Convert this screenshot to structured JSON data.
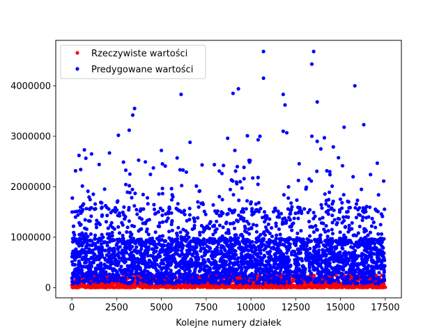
{
  "chart_data": {
    "type": "scatter",
    "title": "",
    "xlabel": "Kolejne numery działek",
    "ylabel": "",
    "xlim": [
      -900,
      18400
    ],
    "ylim": [
      -200000,
      4900000
    ],
    "x_ticks": [
      0,
      2500,
      5000,
      7500,
      10000,
      12500,
      15000,
      17500
    ],
    "x_tick_labels": [
      "0",
      "2500",
      "5000",
      "7500",
      "10000",
      "12500",
      "15000",
      "17500"
    ],
    "y_ticks": [
      0,
      1000000,
      2000000,
      3000000,
      4000000
    ],
    "y_tick_labels": [
      "0",
      "1000000",
      "2000000",
      "3000000",
      "4000000"
    ],
    "grid": false,
    "legend_position": "top-left",
    "series": [
      {
        "name": "Rzeczywiste wartości",
        "color": "#ff0000",
        "description": "dense band of red points spanning x 0–17500 with y mostly between 0 and ~250000",
        "sample_points": [
          [
            300,
            40000
          ],
          [
            1500,
            80000
          ],
          [
            2800,
            20000
          ],
          [
            4100,
            110000
          ],
          [
            5300,
            60000
          ],
          [
            6700,
            30000
          ],
          [
            8000,
            90000
          ],
          [
            9400,
            50000
          ],
          [
            10800,
            120000
          ],
          [
            12100,
            15000
          ],
          [
            13500,
            70000
          ],
          [
            14800,
            100000
          ],
          [
            16200,
            35000
          ],
          [
            17400,
            85000
          ]
        ]
      },
      {
        "name": "Predygowane wartości",
        "color": "#0000ff",
        "description": "dense band of blue points spanning x 0–17500, core y ~100000–1200000, sparse outliers up to ~4700000",
        "outliers": [
          [
            10700,
            4680000
          ],
          [
            13500,
            4680000
          ],
          [
            13400,
            4430000
          ],
          [
            10700,
            4150000
          ],
          [
            15800,
            4000000
          ],
          [
            9300,
            3940000
          ],
          [
            9000,
            3850000
          ],
          [
            11800,
            3830000
          ],
          [
            6100,
            3830000
          ],
          [
            13700,
            3680000
          ],
          [
            11900,
            3620000
          ],
          [
            3500,
            3550000
          ],
          [
            3400,
            3420000
          ],
          [
            16300,
            3230000
          ],
          [
            15200,
            3180000
          ],
          [
            3200,
            3120000
          ],
          [
            11800,
            3100000
          ],
          [
            12000,
            3070000
          ],
          [
            2600,
            3020000
          ],
          [
            13400,
            3000000
          ],
          [
            9800,
            3010000
          ],
          [
            10500,
            3000000
          ],
          [
            8700,
            2960000
          ],
          [
            14100,
            2970000
          ],
          [
            10400,
            2930000
          ],
          [
            13700,
            2900000
          ],
          [
            6600,
            2880000
          ],
          [
            14600,
            2790000
          ],
          [
            13900,
            2750000
          ],
          [
            9100,
            2720000
          ],
          [
            5000,
            2720000
          ],
          [
            700,
            2730000
          ],
          [
            2100,
            2670000
          ],
          [
            1100,
            2650000
          ],
          [
            400,
            2620000
          ]
        ]
      }
    ]
  }
}
